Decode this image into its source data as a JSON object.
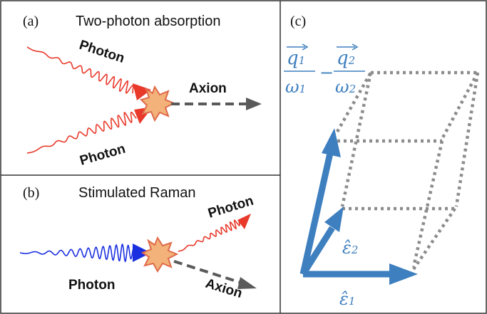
{
  "panels": {
    "a": {
      "tag": "(a)",
      "title": "Two-photon absorption",
      "photon_top": "Photon",
      "photon_bottom": "Photon",
      "axion": "Axion"
    },
    "b": {
      "tag": "(b)",
      "title": "Stimulated Raman",
      "photon_out": "Photon",
      "photon_in": "Photon",
      "axion": "Axion"
    },
    "c": {
      "tag": "(c)",
      "q1": "q",
      "q1_sub": "1",
      "omega1": "ω",
      "omega1_sub": "1",
      "minus": "−",
      "q2": "q",
      "q2_sub": "2",
      "omega2": "ω",
      "omega2_sub": "2",
      "eps1": "ε̂",
      "eps1_sub": "1",
      "eps2": "ε̂",
      "eps2_sub": "2"
    }
  },
  "colors": {
    "photon_red": "#e8392b",
    "photon_blue": "#1a2fe0",
    "axion_gray": "#5a5a5a",
    "vector_blue": "#3e7fbf",
    "box_dotted": "#8c8c8c",
    "burst_fill": "#f2b27a",
    "burst_stroke": "#e06a4a",
    "frame": "#333333"
  },
  "icons": [
    "wavy-photon-arrow",
    "collision-burst-icon",
    "dashed-axion-arrow",
    "vector-arrow"
  ]
}
